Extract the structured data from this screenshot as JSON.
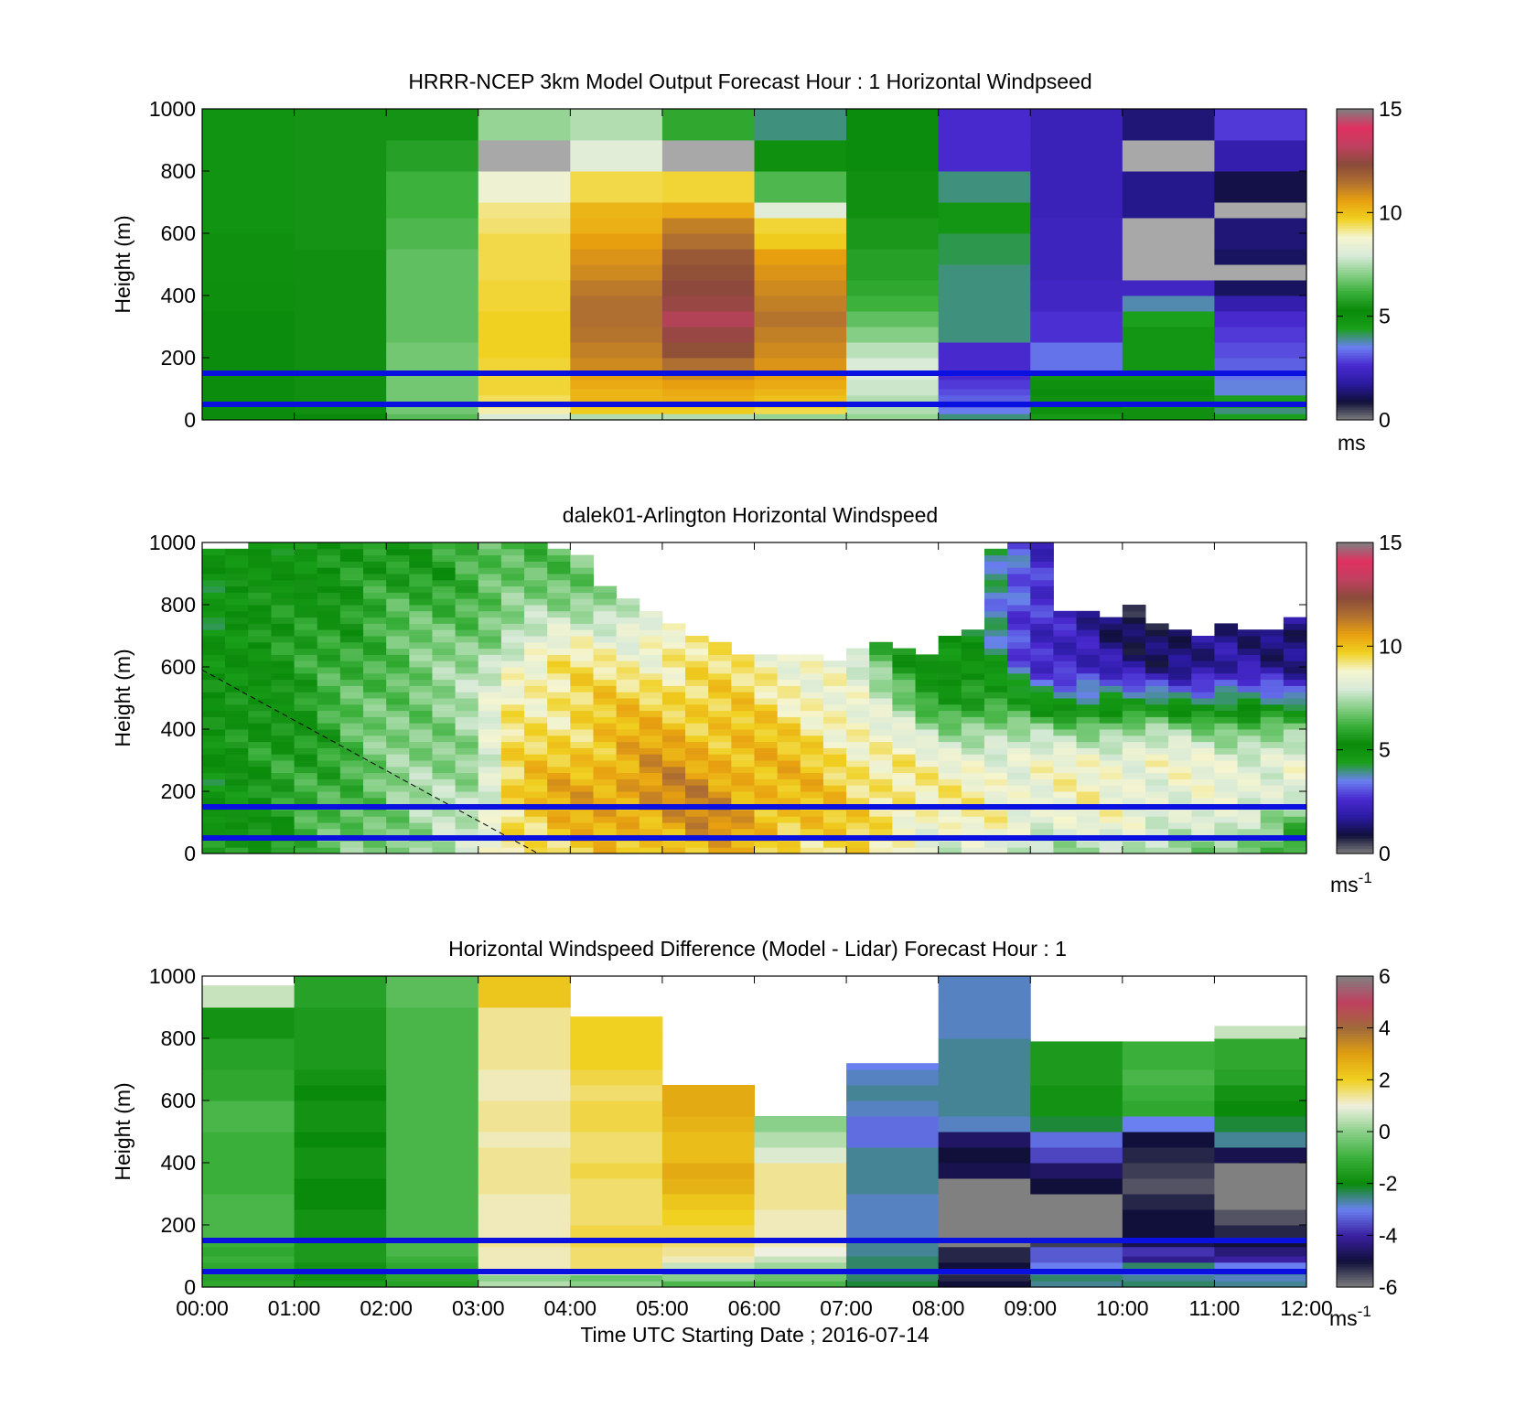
{
  "colors": {
    "windspeed_colormap": [
      "#808080",
      "#10103a",
      "#2a1aa0",
      "#4a2ad0",
      "#6a80f0",
      "#1aa01a",
      "#0a8a0a",
      "#3ab03a",
      "#8ad08a",
      "#d8ead8",
      "#f5f5d0",
      "#f0d020",
      "#e8a010",
      "#b07030",
      "#8a4a3a",
      "#c04060",
      "#e03060",
      "#808080"
    ],
    "difference_colormap": [
      "#808080",
      "#10103a",
      "#3a20a0",
      "#6a80f0",
      "#0a8a0a",
      "#3ab03a",
      "#8ad08a",
      "#f0f0e0",
      "#f0d020",
      "#e0a010",
      "#a06a3a",
      "#c04060",
      "#808080"
    ],
    "reference_line": "#0a10e0"
  },
  "chart_data": [
    {
      "type": "heatmap",
      "panel": "top",
      "title": "HRRR-NCEP 3km Model Output   Forecast Hour : 1 Horizontal Windpseed",
      "ylabel": "Height (m)",
      "xlabel": "",
      "x_ticks": [
        "00:00",
        "01:00",
        "02:00",
        "03:00",
        "04:00",
        "05:00",
        "06:00",
        "07:00",
        "08:00",
        "09:00",
        "10:00",
        "11:00",
        "12:00"
      ],
      "x_tick_labels_visible": false,
      "y_ticks": [
        0,
        200,
        400,
        600,
        800,
        1000
      ],
      "ylim": [
        0,
        1000
      ],
      "xlim_hours": [
        0,
        12
      ],
      "colorbar": {
        "ticks": [
          0,
          5,
          10,
          15
        ],
        "range": [
          0,
          15
        ],
        "unit_label": "ms",
        "unit_superscript": ""
      },
      "reference_heights_m": [
        50,
        150
      ],
      "level_edges_m": [
        0,
        20,
        40,
        60,
        80,
        100,
        130,
        160,
        200,
        250,
        300,
        350,
        400,
        450,
        500,
        550,
        600,
        650,
        700,
        800,
        900,
        1000
      ],
      "columns_hour_start": [
        0,
        1,
        2,
        3,
        4,
        5,
        6,
        7,
        8,
        9,
        10,
        11
      ],
      "values_ms": [
        [
          5.2,
          5.2,
          5.2,
          5.2,
          5.2,
          5.2,
          5.2,
          5.2,
          5.2,
          5.2,
          5.2,
          5.1,
          5.1,
          5.0,
          5.0,
          5.0,
          4.9,
          4.9,
          4.9,
          4.9,
          4.9
        ],
        [
          5.3,
          5.4,
          5.4,
          5.4,
          5.4,
          5.4,
          5.4,
          5.4,
          5.4,
          5.4,
          5.4,
          5.4,
          5.4,
          5.4,
          5.4,
          5.5,
          5.5,
          5.5,
          5.5,
          5.5,
          5.5
        ],
        [
          6.5,
          6.8,
          6.8,
          6.8,
          6.8,
          6.8,
          6.8,
          6.8,
          6.8,
          6.6,
          6.6,
          6.6,
          6.6,
          6.6,
          6.6,
          6.4,
          6.4,
          6.2,
          6.2,
          5.8,
          5.5
        ],
        [
          8.0,
          9.0,
          9.3,
          9.4,
          9.6,
          9.6,
          9.6,
          9.6,
          9.7,
          9.7,
          9.7,
          9.6,
          9.6,
          9.5,
          9.5,
          9.5,
          9.3,
          9.2,
          8.6,
          0.0,
          7.2
        ],
        [
          7.5,
          9.8,
          10.0,
          10.2,
          10.2,
          10.4,
          10.6,
          11.0,
          11.2,
          11.4,
          11.5,
          11.5,
          11.3,
          11.0,
          10.8,
          10.6,
          10.3,
          10.2,
          9.5,
          8.2,
          7.5
        ],
        [
          7.5,
          9.8,
          10.0,
          10.3,
          10.4,
          10.6,
          11.0,
          11.5,
          12.2,
          12.6,
          13.0,
          12.6,
          12.4,
          12.2,
          12.0,
          11.5,
          11.2,
          10.4,
          9.6,
          0.0,
          6.0
        ],
        [
          7.2,
          9.5,
          9.8,
          10.0,
          10.2,
          10.4,
          10.6,
          10.8,
          11.0,
          11.2,
          11.4,
          11.2,
          11.0,
          10.8,
          10.6,
          9.8,
          9.6,
          8.2,
          6.4,
          5.0,
          4.0
        ],
        [
          7.2,
          7.5,
          7.5,
          7.5,
          7.8,
          7.8,
          8.0,
          8.0,
          7.6,
          7.0,
          6.6,
          6.2,
          6.0,
          5.8,
          5.8,
          5.6,
          5.6,
          5.4,
          5.4,
          5.2,
          5.2
        ],
        [
          4.0,
          3.5,
          3.2,
          3.2,
          3.0,
          2.8,
          2.6,
          2.6,
          2.6,
          4.0,
          4.0,
          4.0,
          4.0,
          4.0,
          4.2,
          4.2,
          4.8,
          4.8,
          4.0,
          2.6,
          2.6
        ],
        [
          4.6,
          5.0,
          5.2,
          5.4,
          5.2,
          5.0,
          4.8,
          3.4,
          3.4,
          2.7,
          2.7,
          2.4,
          2.4,
          2.3,
          2.3,
          2.3,
          2.3,
          2.2,
          2.2,
          2.2,
          2.2
        ],
        [
          5.0,
          5.4,
          5.6,
          5.4,
          5.2,
          5.0,
          4.8,
          4.8,
          4.8,
          4.8,
          4.4,
          3.8,
          2.4,
          0.0,
          0.0,
          0.0,
          0.0,
          1.6,
          1.6,
          0.0,
          1.4
        ],
        [
          4.4,
          4.0,
          4.6,
          4.4,
          3.6,
          3.6,
          3.4,
          3.2,
          3.0,
          2.8,
          2.6,
          2.0,
          1.2,
          0.0,
          1.2,
          1.4,
          1.4,
          0.0,
          1.0,
          2.0,
          2.8
        ]
      ]
    },
    {
      "type": "heatmap",
      "panel": "middle",
      "title": "dalek01-Arlington  Horizontal Windspeed",
      "ylabel": "Height (m)",
      "xlabel": "",
      "x_ticks": [
        "00:00",
        "01:00",
        "02:00",
        "03:00",
        "04:00",
        "05:00",
        "06:00",
        "07:00",
        "08:00",
        "09:00",
        "10:00",
        "11:00",
        "12:00"
      ],
      "x_tick_labels_visible": false,
      "y_ticks": [
        0,
        200,
        400,
        600,
        800,
        1000
      ],
      "ylim": [
        0,
        1000
      ],
      "xlim_hours": [
        0,
        12
      ],
      "colorbar": {
        "ticks": [
          0,
          5,
          10,
          15
        ],
        "range": [
          0,
          15
        ],
        "unit_label": "ms",
        "unit_superscript": "-1"
      },
      "reference_heights_m": [
        50,
        150
      ],
      "dashed_line": {
        "from": [
          0,
          590
        ],
        "to": [
          3.65,
          0
        ]
      },
      "profile_interval_hours": 0.25,
      "top_of_valid_data_m": [
        980,
        980,
        990,
        990,
        990,
        990,
        990,
        990,
        990,
        990,
        990,
        990,
        990,
        990,
        990,
        980,
        960,
        860,
        820,
        780,
        740,
        700,
        680,
        640,
        640,
        640,
        640,
        620,
        660,
        680,
        660,
        640,
        700,
        720,
        980,
        990,
        990,
        780,
        780,
        760,
        800,
        740,
        720,
        700,
        740,
        720,
        720,
        760
      ],
      "anchor_hours": [
        0,
        1,
        2,
        3,
        3.3,
        4,
        5,
        5.5,
        6,
        7,
        7.6,
        8,
        8.5,
        9,
        10,
        11,
        12
      ],
      "anchor_profiles_ms": {
        "z_m": [
          20,
          100,
          200,
          300,
          400,
          500,
          600,
          700,
          800,
          900
        ],
        "profiles": [
          [
            5.2,
            5.0,
            4.8,
            5.0,
            5.0,
            5.0,
            4.8,
            5.0,
            4.6,
            4.6
          ],
          [
            6.0,
            5.8,
            5.8,
            5.8,
            5.6,
            5.6,
            5.6,
            5.6,
            5.4,
            5.2
          ],
          [
            7.2,
            7.0,
            7.0,
            6.8,
            6.8,
            6.8,
            6.6,
            6.4,
            6.0,
            5.6
          ],
          [
            7.6,
            7.6,
            7.6,
            7.4,
            7.4,
            7.4,
            7.2,
            7.0,
            6.6,
            6.2
          ],
          [
            9.4,
            9.6,
            9.6,
            9.2,
            9.0,
            9.0,
            8.8,
            7.4,
            6.8,
            6.4
          ],
          [
            9.6,
            10.0,
            10.4,
            10.0,
            9.6,
            9.4,
            9.2,
            8.4,
            7.2,
            6.8
          ],
          [
            10.0,
            10.6,
            11.0,
            10.6,
            10.2,
            9.8,
            9.0,
            8.6,
            8.0,
            7.4
          ],
          [
            10.2,
            11.0,
            10.8,
            10.4,
            10.0,
            9.6,
            9.2,
            9.0,
            8.6,
            7.8
          ],
          [
            9.8,
            10.4,
            10.4,
            10.2,
            9.8,
            9.4,
            9.2,
            9.0,
            8.6,
            7.8
          ],
          [
            9.4,
            9.6,
            9.6,
            9.4,
            9.0,
            8.6,
            8.2,
            7.4,
            6.8,
            6.4
          ],
          [
            8.8,
            9.2,
            9.4,
            9.0,
            8.0,
            7.0,
            6.2,
            5.6,
            5.2,
            5.0
          ],
          [
            8.2,
            8.6,
            8.8,
            8.4,
            7.2,
            5.6,
            4.8,
            4.6,
            4.4,
            4.2
          ],
          [
            8.0,
            8.8,
            9.0,
            8.6,
            7.4,
            5.6,
            4.8,
            4.6,
            4.4,
            4.2
          ],
          [
            7.6,
            8.6,
            8.6,
            8.4,
            7.0,
            4.6,
            3.0,
            2.6,
            2.6,
            2.6
          ],
          [
            7.4,
            8.4,
            8.6,
            8.8,
            7.2,
            4.0,
            1.6,
            1.2,
            1.2,
            1.4
          ],
          [
            7.2,
            8.2,
            8.2,
            8.4,
            7.0,
            4.2,
            1.6,
            1.4,
            1.6,
            1.8
          ],
          [
            5.6,
            6.4,
            8.6,
            8.4,
            6.6,
            3.4,
            1.8,
            1.6,
            2.0,
            2.2
          ]
        ]
      }
    },
    {
      "type": "heatmap",
      "panel": "bottom",
      "title": "Horizontal Windspeed Difference (Model - Lidar) Forecast Hour : 1",
      "ylabel": "Height (m)",
      "xlabel": "Time UTC  Starting Date ; 2016-07-14",
      "x_ticks": [
        "00:00",
        "01:00",
        "02:00",
        "03:00",
        "04:00",
        "05:00",
        "06:00",
        "07:00",
        "08:00",
        "09:00",
        "10:00",
        "11:00",
        "12:00"
      ],
      "x_tick_labels_visible": true,
      "y_ticks": [
        0,
        200,
        400,
        600,
        800,
        1000
      ],
      "ylim": [
        0,
        1000
      ],
      "xlim_hours": [
        0,
        12
      ],
      "colorbar": {
        "ticks": [
          -6,
          -4,
          -2,
          0,
          2,
          4,
          6
        ],
        "range": [
          -6,
          6
        ],
        "unit_label": "ms",
        "unit_superscript": "-1"
      },
      "reference_heights_m": [
        50,
        150
      ],
      "column_top_m": [
        970,
        1000,
        1000,
        1000,
        870,
        650,
        550,
        720,
        1000,
        790,
        790,
        840
      ],
      "level_edges_m": [
        0,
        20,
        40,
        60,
        80,
        100,
        130,
        160,
        200,
        250,
        300,
        350,
        400,
        450,
        500,
        550,
        600,
        650,
        700,
        800,
        900,
        1000
      ],
      "values_ms": [
        [
          -1.2,
          -1.4,
          -1.2,
          -1.2,
          -1.0,
          -1.2,
          -1.0,
          -0.8,
          -0.8,
          -0.8,
          -1.0,
          -1.0,
          -1.0,
          -1.0,
          -0.8,
          -0.8,
          -1.2,
          -1.2,
          -1.4,
          -1.8,
          0.6
        ],
        [
          -1.6,
          -1.8,
          -1.8,
          -1.8,
          -1.6,
          -1.6,
          -1.6,
          -1.8,
          -1.8,
          -2.0,
          -2.0,
          -1.8,
          -1.8,
          -2.0,
          -1.8,
          -1.8,
          -2.0,
          -1.8,
          -1.6,
          -1.6,
          -1.4
        ],
        [
          -1.4,
          -1.2,
          -1.0,
          -1.2,
          -1.0,
          -0.8,
          -0.8,
          -0.8,
          -0.8,
          -0.8,
          -0.8,
          -0.8,
          -0.8,
          -0.8,
          -0.8,
          -0.8,
          -0.8,
          -0.8,
          -0.8,
          -0.8,
          -0.6
        ],
        [
          0.4,
          0.0,
          1.0,
          1.2,
          1.2,
          1.2,
          1.4,
          1.2,
          1.2,
          1.2,
          1.4,
          1.4,
          1.4,
          1.2,
          1.4,
          1.4,
          1.2,
          1.2,
          1.4,
          1.4,
          2.2
        ],
        [
          0.0,
          -0.4,
          1.0,
          1.6,
          1.6,
          1.6,
          1.8,
          1.8,
          1.6,
          1.6,
          1.6,
          1.8,
          1.6,
          1.6,
          1.8,
          1.8,
          1.6,
          1.8,
          2.0,
          2.0,
          -99
        ],
        [
          -0.8,
          0.0,
          0.2,
          0.6,
          1.2,
          1.4,
          1.6,
          1.8,
          2.0,
          2.2,
          2.6,
          2.8,
          2.4,
          2.4,
          2.6,
          2.8,
          2.8,
          -99,
          -99,
          -99,
          -99
        ],
        [
          -0.8,
          -0.4,
          -0.2,
          0.2,
          0.6,
          1.0,
          1.2,
          1.2,
          1.2,
          1.4,
          1.4,
          1.4,
          0.8,
          0.4,
          0.0,
          -99,
          -99,
          -99,
          -99,
          -99,
          -99
        ],
        [
          -2.2,
          -2.4,
          -2.6,
          -2.4,
          -2.4,
          -2.6,
          -2.6,
          -2.8,
          -2.8,
          -2.8,
          -2.6,
          -2.6,
          -2.6,
          -3.2,
          -3.2,
          -2.8,
          -2.6,
          -2.8,
          -3.0,
          -99,
          -99
        ],
        [
          -5.0,
          -5.2,
          -5.4,
          -5.0,
          -5.2,
          -5.2,
          -6.1,
          -6.1,
          -6.1,
          -6.1,
          -6.1,
          -4.8,
          -5.0,
          -4.6,
          -2.8,
          -2.6,
          -2.6,
          -2.6,
          -2.6,
          -2.8,
          -2.8
        ],
        [
          -2.6,
          -2.4,
          -2.8,
          -3.0,
          -3.4,
          -3.4,
          -5.4,
          -6.1,
          -6.1,
          -6.1,
          -5.0,
          -4.6,
          -3.6,
          -3.2,
          -2.2,
          -1.8,
          -1.8,
          -1.6,
          -1.6,
          -99,
          -99
        ],
        [
          -2.4,
          -2.6,
          -3.0,
          -2.4,
          -4.2,
          -3.8,
          -4.8,
          -5.0,
          -5.0,
          -5.2,
          -5.6,
          -5.4,
          -5.2,
          -5.0,
          -3.0,
          -1.2,
          -1.0,
          -0.8,
          -1.0,
          -99,
          -99
        ],
        [
          -2.6,
          -2.8,
          -2.6,
          -3.0,
          -4.0,
          -4.4,
          -5.0,
          -5.2,
          -5.6,
          -6.1,
          -6.1,
          -6.1,
          -4.8,
          -2.6,
          -2.2,
          -2.0,
          -1.8,
          -1.4,
          -1.2,
          0.6,
          -99
        ]
      ]
    }
  ]
}
